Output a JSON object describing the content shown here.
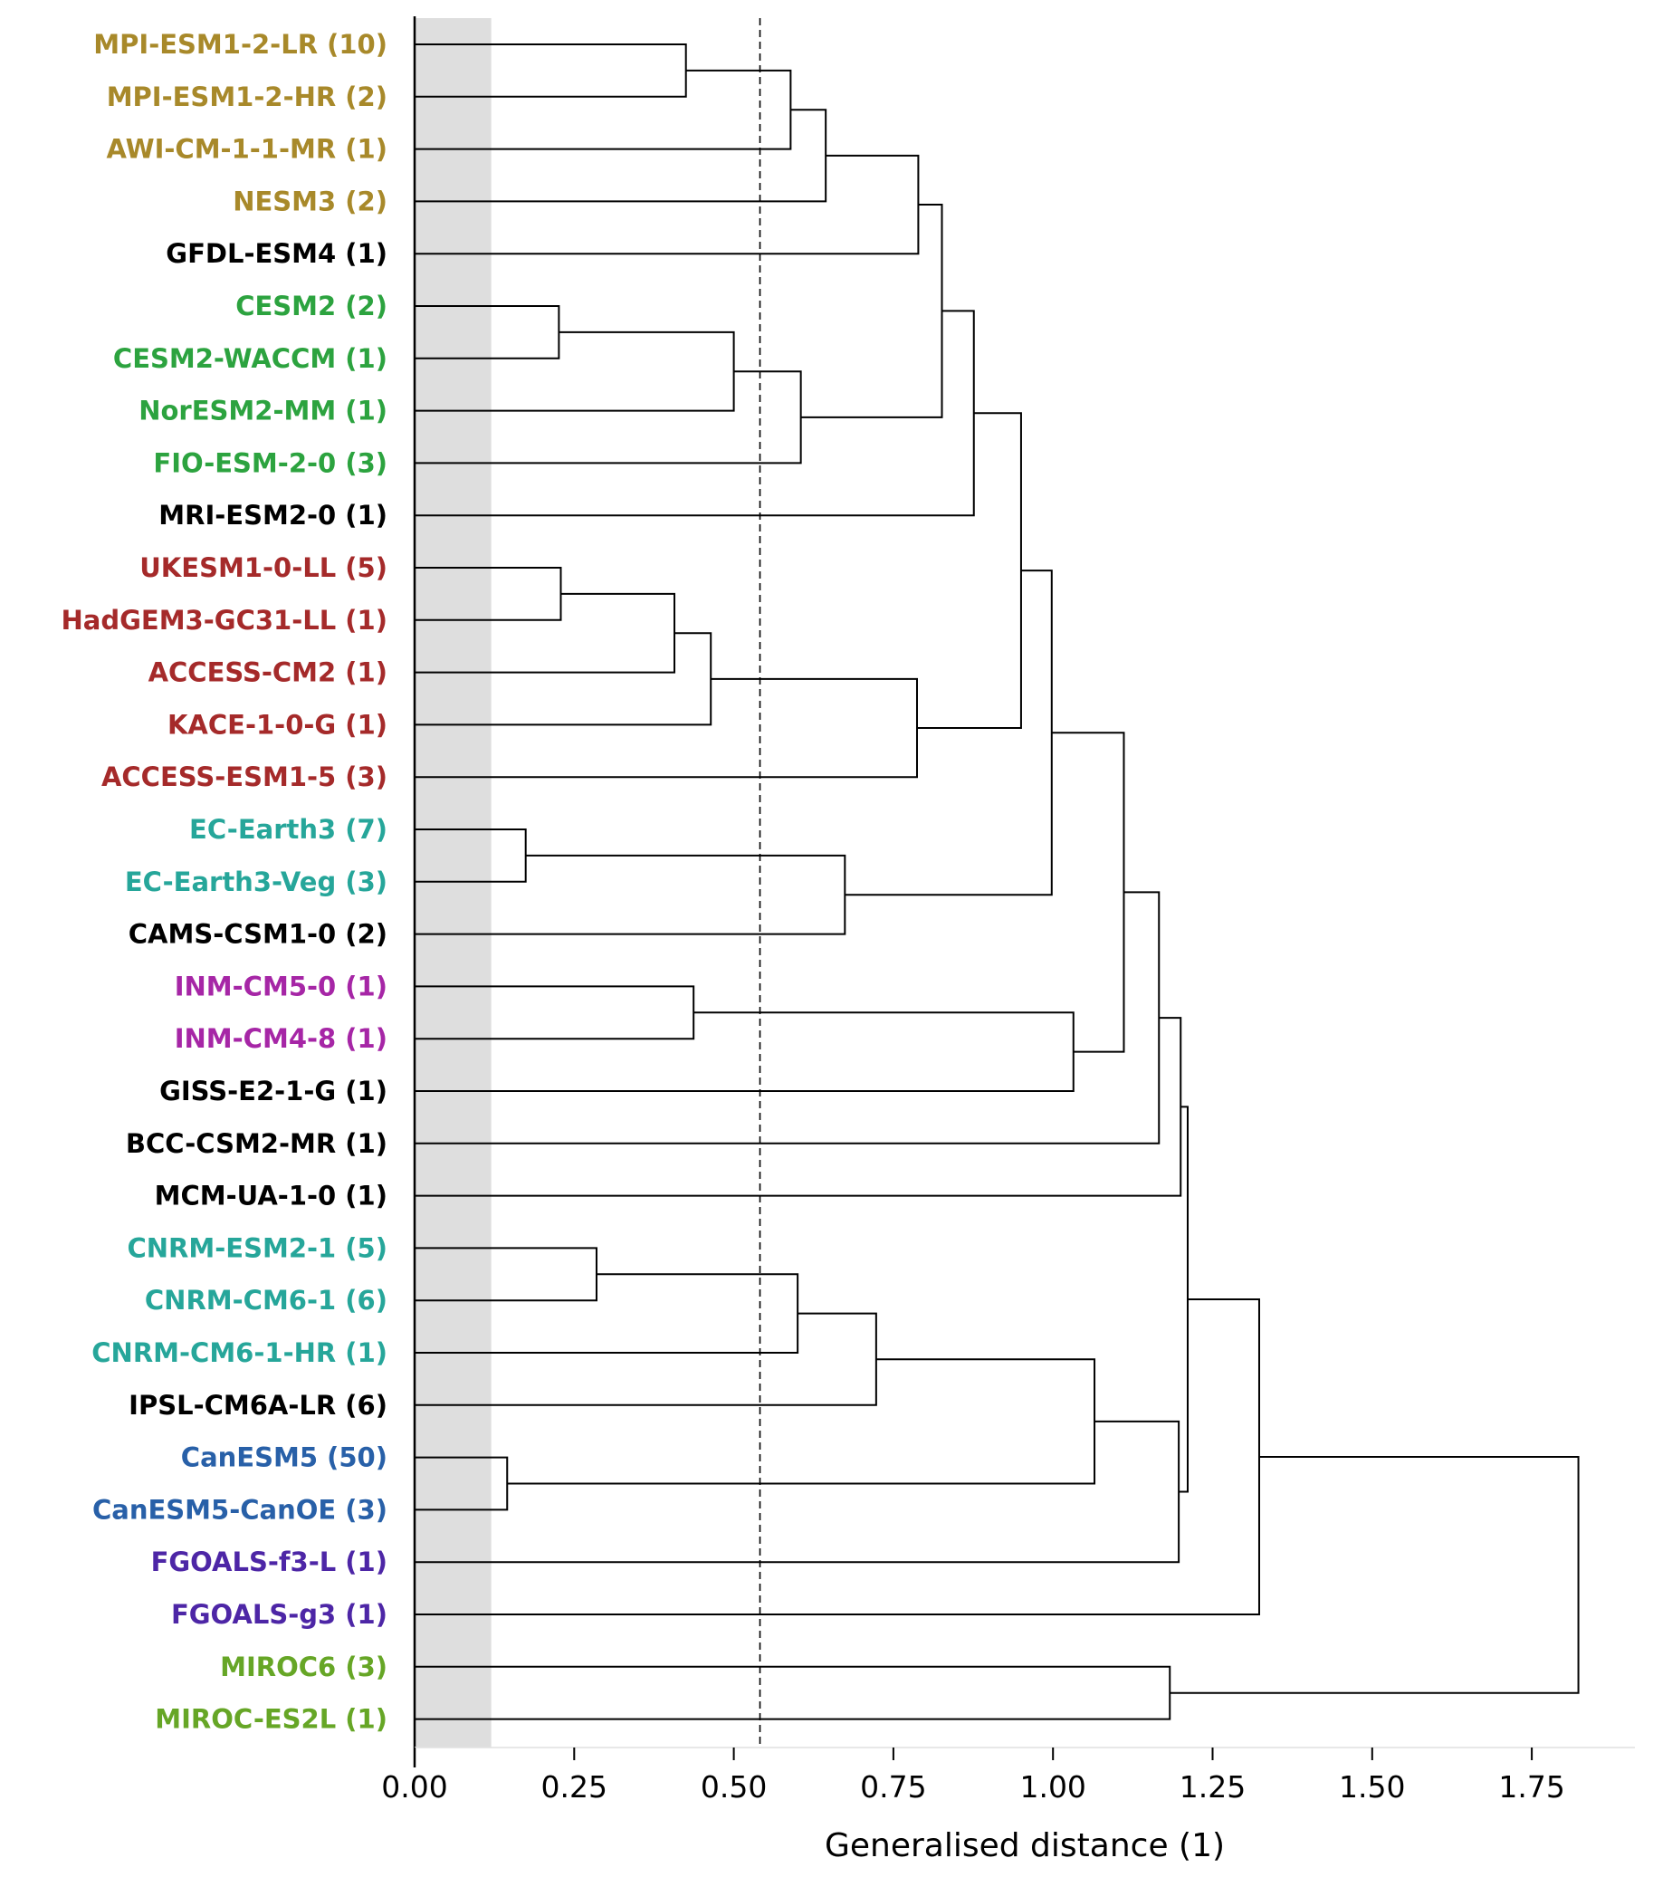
{
  "chart_data": {
    "type": "dendrogram",
    "orientation": "horizontal",
    "xlabel": "Generalised distance (1)",
    "xlim": [
      0,
      1.93
    ],
    "xticks": [
      "0.00",
      "0.25",
      "0.50",
      "0.75",
      "1.00",
      "1.25",
      "1.50",
      "1.75"
    ],
    "xtick_values": [
      0,
      0.25,
      0.5,
      0.75,
      1.0,
      1.25,
      1.5,
      1.75
    ],
    "threshold_line": 0.541,
    "shaded_band": [
      0,
      0.12
    ],
    "group_colors": {
      "mpi": "#a8892a",
      "ncar": "#2ca33f",
      "ukmo": "#a52a2a",
      "ecearth": "#26a69a",
      "inm": "#a626a6",
      "cccma": "#2860a8",
      "cas": "#4d26a6",
      "miroc": "#66a626",
      "other": "#000000"
    },
    "leaves": [
      {
        "label": "MPI-ESM1-2-LR (10)",
        "group": "mpi"
      },
      {
        "label": "MPI-ESM1-2-HR (2)",
        "group": "mpi"
      },
      {
        "label": "AWI-CM-1-1-MR (1)",
        "group": "mpi"
      },
      {
        "label": "NESM3 (2)",
        "group": "mpi"
      },
      {
        "label": "GFDL-ESM4 (1)",
        "group": "other"
      },
      {
        "label": "CESM2 (2)",
        "group": "ncar"
      },
      {
        "label": "CESM2-WACCM (1)",
        "group": "ncar"
      },
      {
        "label": "NorESM2-MM (1)",
        "group": "ncar"
      },
      {
        "label": "FIO-ESM-2-0 (3)",
        "group": "ncar"
      },
      {
        "label": "MRI-ESM2-0 (1)",
        "group": "other"
      },
      {
        "label": "UKESM1-0-LL (5)",
        "group": "ukmo"
      },
      {
        "label": "HadGEM3-GC31-LL (1)",
        "group": "ukmo"
      },
      {
        "label": "ACCESS-CM2 (1)",
        "group": "ukmo"
      },
      {
        "label": "KACE-1-0-G (1)",
        "group": "ukmo"
      },
      {
        "label": "ACCESS-ESM1-5 (3)",
        "group": "ukmo"
      },
      {
        "label": "EC-Earth3 (7)",
        "group": "ecearth"
      },
      {
        "label": "EC-Earth3-Veg (3)",
        "group": "ecearth"
      },
      {
        "label": "CAMS-CSM1-0 (2)",
        "group": "other"
      },
      {
        "label": "INM-CM5-0 (1)",
        "group": "inm"
      },
      {
        "label": "INM-CM4-8 (1)",
        "group": "inm"
      },
      {
        "label": "GISS-E2-1-G (1)",
        "group": "other"
      },
      {
        "label": "BCC-CSM2-MR (1)",
        "group": "other"
      },
      {
        "label": "MCM-UA-1-0 (1)",
        "group": "other"
      },
      {
        "label": "CNRM-ESM2-1 (5)",
        "group": "ecearth"
      },
      {
        "label": "CNRM-CM6-1 (6)",
        "group": "ecearth"
      },
      {
        "label": "CNRM-CM6-1-HR (1)",
        "group": "ecearth"
      },
      {
        "label": "IPSL-CM6A-LR (6)",
        "group": "other"
      },
      {
        "label": "CanESM5 (50)",
        "group": "cccma"
      },
      {
        "label": "CanESM5-CanOE (3)",
        "group": "cccma"
      },
      {
        "label": "FGOALS-f3-L (1)",
        "group": "cas"
      },
      {
        "label": "FGOALS-g3 (1)",
        "group": "cas"
      },
      {
        "label": "MIROC6 (3)",
        "group": "miroc"
      },
      {
        "label": "MIROC-ES2L (1)",
        "group": "miroc"
      }
    ],
    "merges": [
      {
        "id": "n0",
        "left": 0,
        "right": 1,
        "height": 0.425
      },
      {
        "id": "n1",
        "left": "n0",
        "right": 2,
        "height": 0.589
      },
      {
        "id": "n2",
        "left": "n1",
        "right": 3,
        "height": 0.644
      },
      {
        "id": "n3",
        "left": "n2",
        "right": 4,
        "height": 0.789
      },
      {
        "id": "n4",
        "left": 5,
        "right": 6,
        "height": 0.226
      },
      {
        "id": "n5",
        "left": "n4",
        "right": 7,
        "height": 0.5
      },
      {
        "id": "n6",
        "left": "n5",
        "right": 8,
        "height": 0.605
      },
      {
        "id": "n7",
        "left": "n3",
        "right": "n6",
        "height": 0.826
      },
      {
        "id": "n8",
        "left": "n7",
        "right": 9,
        "height": 0.876
      },
      {
        "id": "n9",
        "left": 10,
        "right": 11,
        "height": 0.229
      },
      {
        "id": "n10",
        "left": "n9",
        "right": 12,
        "height": 0.407
      },
      {
        "id": "n11",
        "left": "n10",
        "right": 13,
        "height": 0.464
      },
      {
        "id": "n12",
        "left": "n11",
        "right": 14,
        "height": 0.787
      },
      {
        "id": "n13",
        "left": "n8",
        "right": "n12",
        "height": 0.95
      },
      {
        "id": "n14",
        "left": 15,
        "right": 16,
        "height": 0.174
      },
      {
        "id": "n15",
        "left": "n14",
        "right": 17,
        "height": 0.674
      },
      {
        "id": "n16",
        "left": "n13",
        "right": "n15",
        "height": 0.998
      },
      {
        "id": "n17",
        "left": 18,
        "right": 19,
        "height": 0.437
      },
      {
        "id": "n18",
        "left": "n17",
        "right": 20,
        "height": 1.032
      },
      {
        "id": "n19",
        "left": "n16",
        "right": "n18",
        "height": 1.111
      },
      {
        "id": "n20",
        "left": "n19",
        "right": 21,
        "height": 1.166
      },
      {
        "id": "n21",
        "left": "n20",
        "right": 22,
        "height": 1.2
      },
      {
        "id": "n22",
        "left": 23,
        "right": 24,
        "height": 0.285
      },
      {
        "id": "n23",
        "left": "n22",
        "right": 25,
        "height": 0.6
      },
      {
        "id": "n24",
        "left": "n23",
        "right": 26,
        "height": 0.723
      },
      {
        "id": "n25",
        "left": 27,
        "right": 28,
        "height": 0.145
      },
      {
        "id": "n26",
        "left": "n24",
        "right": "n25",
        "height": 1.065
      },
      {
        "id": "n27",
        "left": "n26",
        "right": 29,
        "height": 1.197
      },
      {
        "id": "n28",
        "left": "n21",
        "right": "n27",
        "height": 1.211
      },
      {
        "id": "n29",
        "left": "n28",
        "right": 30,
        "height": 1.323
      },
      {
        "id": "n30",
        "left": 31,
        "right": 32,
        "height": 1.183
      },
      {
        "id": "n31",
        "left": "n29",
        "right": "n30",
        "height": 1.823
      }
    ]
  }
}
